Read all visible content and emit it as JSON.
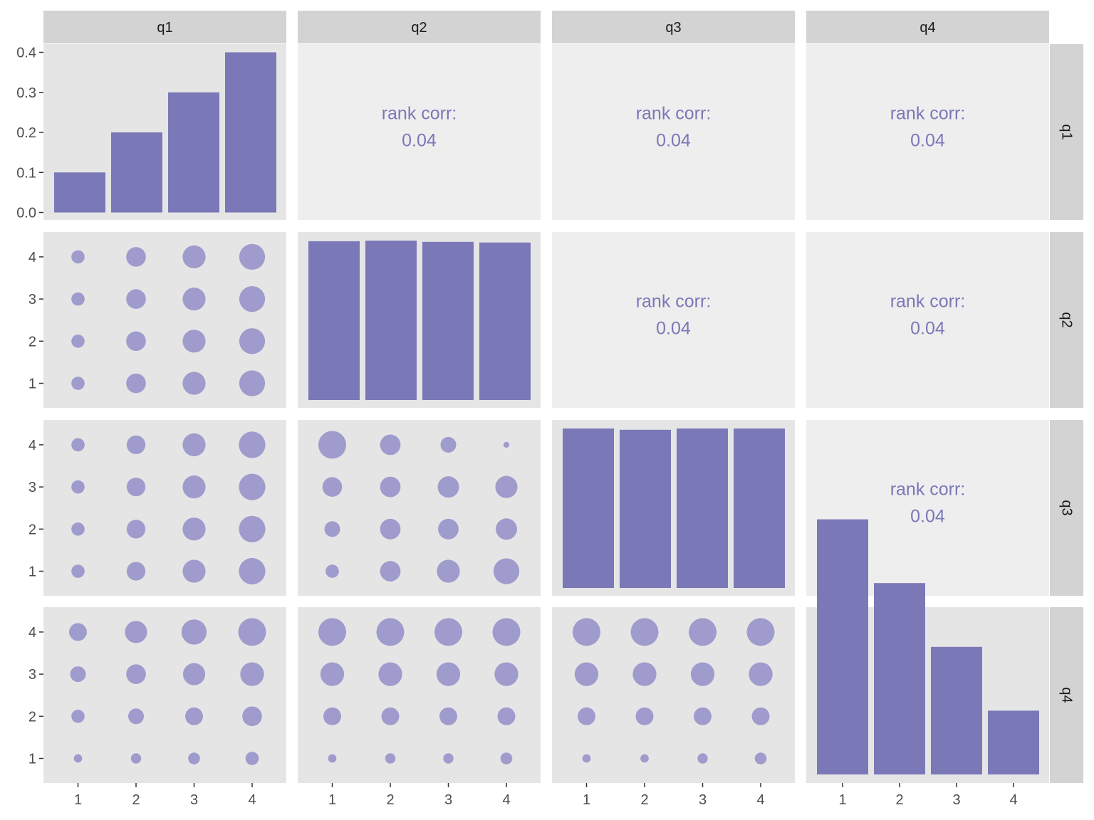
{
  "chart_data": {
    "type": "scatter",
    "plot_kind": "pairs-matrix",
    "variables": [
      "q1",
      "q2",
      "q3",
      "q4"
    ],
    "colors": {
      "bar_fill": "#7b78b8",
      "point_fill": "#9f9bcc",
      "corr_text": "#7b78b8",
      "panel_background": "#e5e5e5",
      "upper_panel_background": "#eeeeee",
      "strip_background": "#d3d3d3",
      "strip_text": "#1a1a1a",
      "tick_text": "#4d4d4d"
    },
    "diagonal_y_ticks": [
      "0.0",
      "0.1",
      "0.2",
      "0.3",
      "0.4"
    ],
    "diagonal_ylim": [
      0,
      0.4
    ],
    "point_y_ticks": [
      "1",
      "2",
      "3",
      "4"
    ],
    "x_ticks": [
      "1",
      "2",
      "3",
      "4"
    ],
    "correlation_label": "rank corr:",
    "diagonal": {
      "q1": [
        0.1,
        0.2,
        0.3,
        0.4
      ],
      "q2": [
        0.249,
        0.25,
        0.248,
        0.247
      ],
      "q3": [
        0.25,
        0.248,
        0.25,
        0.25
      ],
      "q4": [
        0.4,
        0.3,
        0.2,
        0.1
      ]
    },
    "upper": [
      {
        "row": "q1",
        "col": "q2",
        "value": "0.04"
      },
      {
        "row": "q1",
        "col": "q3",
        "value": "0.04"
      },
      {
        "row": "q1",
        "col": "q4",
        "value": "0.04"
      },
      {
        "row": "q2",
        "col": "q3",
        "value": "0.04"
      },
      {
        "row": "q2",
        "col": "q4",
        "value": "0.04"
      },
      {
        "row": "q3",
        "col": "q4",
        "value": "0.04"
      }
    ],
    "lower": [
      {
        "row": "q2",
        "col": "q1",
        "counts": [
          [
            5,
            11,
            15,
            19
          ],
          [
            5,
            11,
            15,
            19
          ],
          [
            5,
            11,
            15,
            19
          ],
          [
            5,
            11,
            15,
            19
          ]
        ]
      },
      {
        "row": "q3",
        "col": "q1",
        "counts": [
          [
            5,
            10,
            15,
            20
          ],
          [
            5,
            10,
            15,
            20
          ],
          [
            5,
            10,
            15,
            20
          ],
          [
            5,
            10,
            15,
            20
          ]
        ]
      },
      {
        "row": "q3",
        "col": "q2",
        "counts": [
          [
            22,
            12,
            7,
            1
          ],
          [
            11,
            12,
            13,
            14
          ],
          [
            7,
            12,
            12,
            13
          ],
          [
            5,
            12,
            15,
            19
          ]
        ]
      },
      {
        "row": "q4",
        "col": "q1",
        "counts": [
          [
            9,
            14,
            18,
            22
          ],
          [
            7,
            11,
            14,
            16
          ],
          [
            5,
            7,
            9,
            11
          ],
          [
            2,
            3,
            4,
            5
          ]
        ]
      },
      {
        "row": "q4",
        "col": "q2",
        "counts": [
          [
            22,
            22,
            22,
            22
          ],
          [
            16,
            16,
            16,
            16
          ],
          [
            9,
            9,
            9,
            9
          ],
          [
            2,
            3,
            3,
            4
          ]
        ]
      },
      {
        "row": "q4",
        "col": "q3",
        "counts": [
          [
            22,
            22,
            22,
            22
          ],
          [
            16,
            16,
            16,
            16
          ],
          [
            9,
            9,
            9,
            9
          ],
          [
            2,
            2,
            3,
            4
          ]
        ]
      }
    ]
  }
}
